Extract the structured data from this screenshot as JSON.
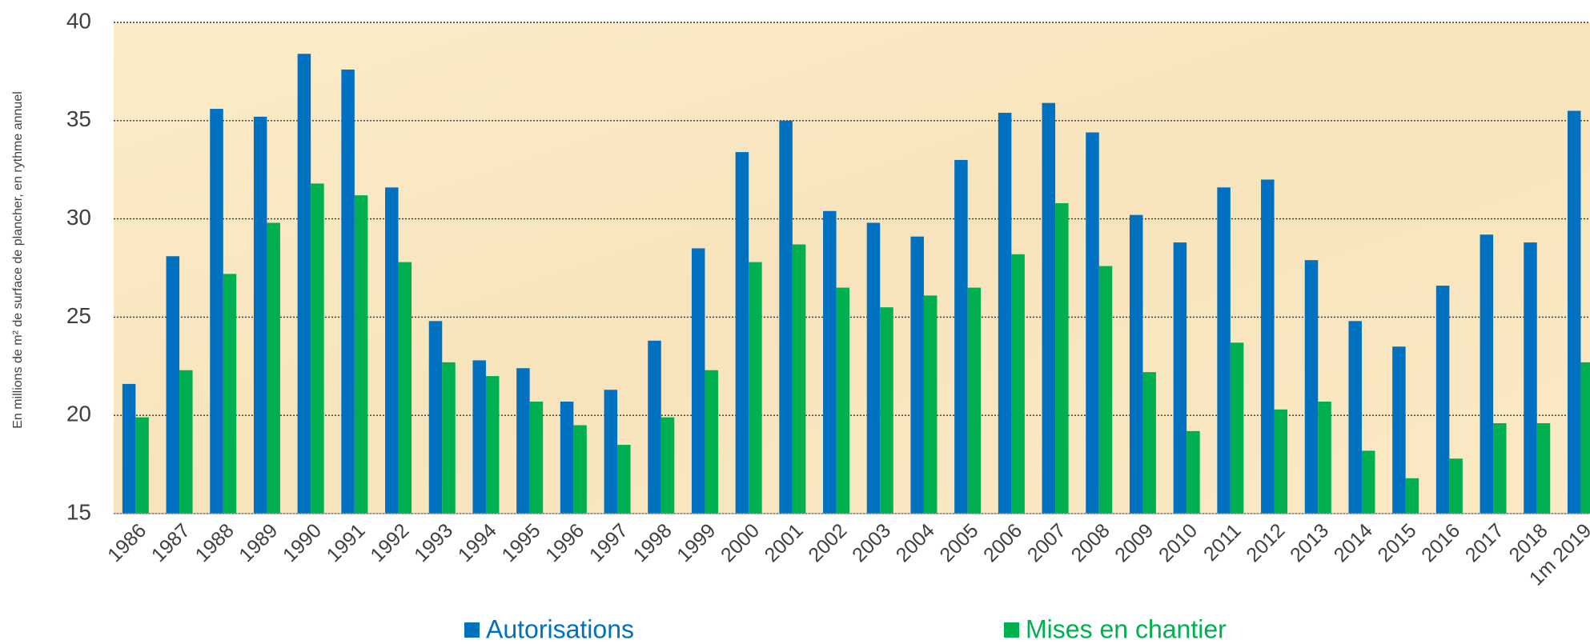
{
  "chart_data": {
    "type": "bar",
    "y_label": "En millions de m² de surface de plancher, en rythme annuel",
    "categories": [
      "1986",
      "1987",
      "1988",
      "1989",
      "1990",
      "1991",
      "1992",
      "1993",
      "1994",
      "1995",
      "1996",
      "1997",
      "1998",
      "1999",
      "2000",
      "2001",
      "2002",
      "2003",
      "2004",
      "2005",
      "2006",
      "2007",
      "2008",
      "2009",
      "2010",
      "2011",
      "2012",
      "2013",
      "2014",
      "2015",
      "2016",
      "2017",
      "2018",
      "1m 2019"
    ],
    "series": [
      {
        "name": "Autorisations",
        "color": "#0070c0",
        "values": [
          21.6,
          28.1,
          35.6,
          35.2,
          38.4,
          37.6,
          31.6,
          24.8,
          22.8,
          22.4,
          20.7,
          21.3,
          23.8,
          28.5,
          33.4,
          35.0,
          30.4,
          29.8,
          29.1,
          33.0,
          35.4,
          35.9,
          34.4,
          30.2,
          28.8,
          31.6,
          32.0,
          27.9,
          24.8,
          23.5,
          26.6,
          29.2,
          28.8,
          35.5
        ]
      },
      {
        "name": "Mises en chantier",
        "color": "#00b050",
        "values": [
          19.9,
          22.3,
          27.2,
          29.8,
          31.8,
          31.2,
          27.8,
          22.7,
          22.0,
          20.7,
          19.5,
          18.5,
          19.9,
          22.3,
          27.8,
          28.7,
          26.5,
          25.5,
          26.1,
          26.5,
          28.2,
          30.8,
          27.6,
          22.2,
          19.2,
          23.7,
          20.3,
          20.7,
          18.2,
          16.8,
          17.8,
          19.6,
          19.6,
          22.7
        ]
      }
    ],
    "ylim": [
      15,
      40
    ],
    "yticks": [
      15,
      20,
      25,
      30,
      35,
      40
    ],
    "grid": true
  }
}
